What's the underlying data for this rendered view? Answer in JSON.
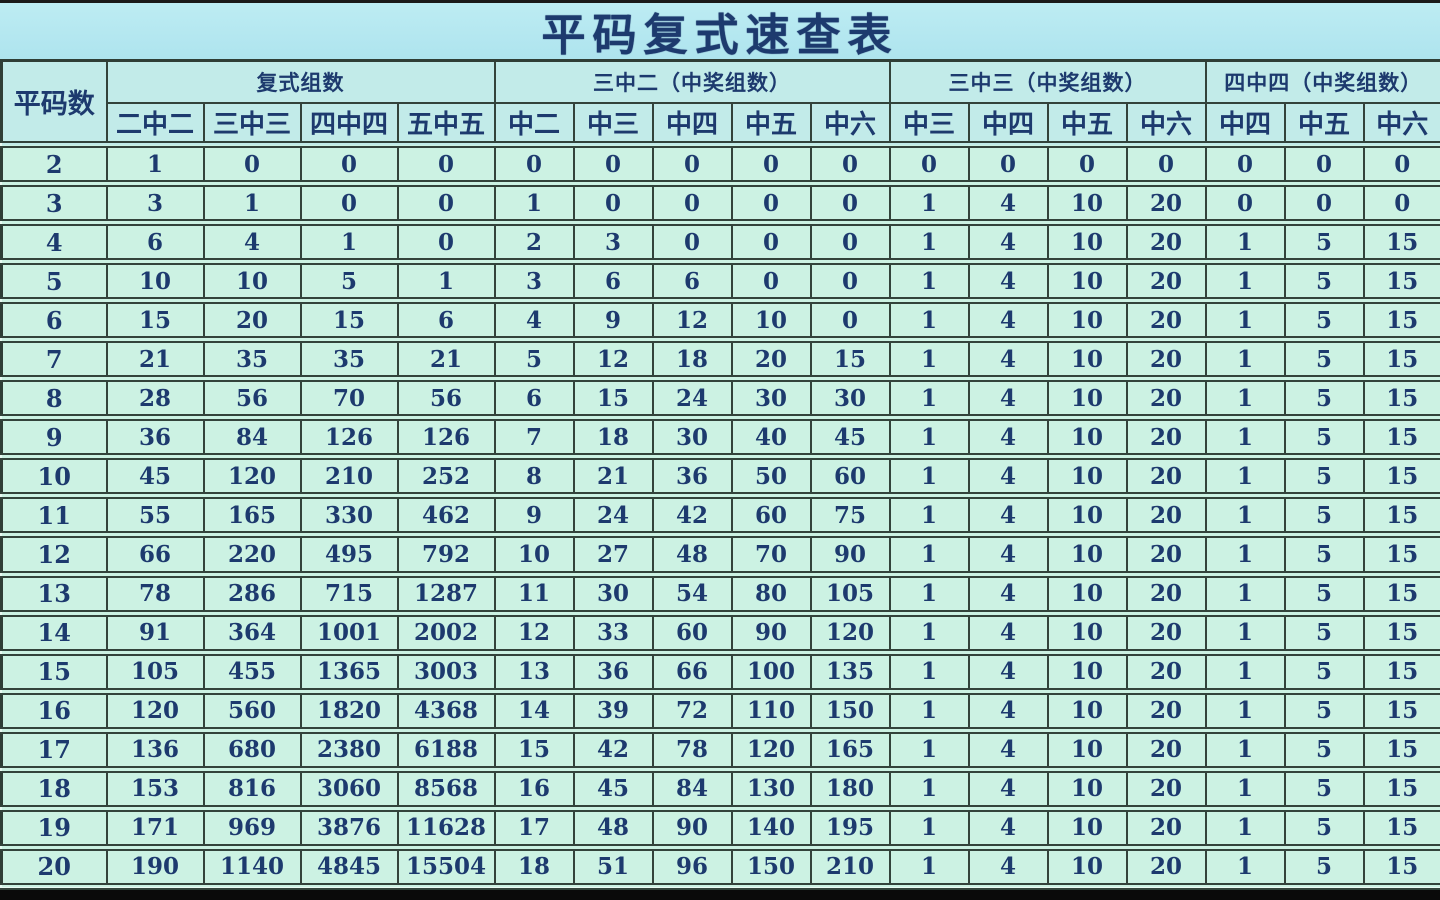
{
  "title": "平码复式速查表",
  "colors": {
    "title_band_bg": "#aee4ee",
    "header_cell_bg": "#c2ebe9",
    "data_cell_bg": "#ccf2e3",
    "row_gap_bg": "#e9fbf3",
    "text": "#1d3a6e",
    "border": "#33433b",
    "bottom_band": "#0a0a0a"
  },
  "chart_data": {
    "type": "table",
    "title": "平码复式速查表",
    "row_header_label": "平码数",
    "column_groups": [
      {
        "label": "复式组数",
        "cols": [
          "二中二",
          "三中三",
          "四中四",
          "五中五"
        ]
      },
      {
        "label": "三中二（中奖组数）",
        "cols": [
          "中二",
          "中三",
          "中四",
          "中五",
          "中六"
        ]
      },
      {
        "label": "三中三（中奖组数）",
        "cols": [
          "中三",
          "中四",
          "中五",
          "中六"
        ]
      },
      {
        "label": "四中四（中奖组数）",
        "cols": [
          "中四",
          "中五",
          "中六"
        ]
      }
    ],
    "rows": [
      {
        "n": 2,
        "values": [
          1,
          0,
          0,
          0,
          0,
          0,
          0,
          0,
          0,
          0,
          0,
          0,
          0,
          0,
          0,
          0
        ]
      },
      {
        "n": 3,
        "values": [
          3,
          1,
          0,
          0,
          1,
          0,
          0,
          0,
          0,
          1,
          4,
          10,
          20,
          0,
          0,
          0
        ]
      },
      {
        "n": 4,
        "values": [
          6,
          4,
          1,
          0,
          2,
          3,
          0,
          0,
          0,
          1,
          4,
          10,
          20,
          1,
          5,
          15
        ]
      },
      {
        "n": 5,
        "values": [
          10,
          10,
          5,
          1,
          3,
          6,
          6,
          0,
          0,
          1,
          4,
          10,
          20,
          1,
          5,
          15
        ]
      },
      {
        "n": 6,
        "values": [
          15,
          20,
          15,
          6,
          4,
          9,
          12,
          10,
          0,
          1,
          4,
          10,
          20,
          1,
          5,
          15
        ]
      },
      {
        "n": 7,
        "values": [
          21,
          35,
          35,
          21,
          5,
          12,
          18,
          20,
          15,
          1,
          4,
          10,
          20,
          1,
          5,
          15
        ]
      },
      {
        "n": 8,
        "values": [
          28,
          56,
          70,
          56,
          6,
          15,
          24,
          30,
          30,
          1,
          4,
          10,
          20,
          1,
          5,
          15
        ]
      },
      {
        "n": 9,
        "values": [
          36,
          84,
          126,
          126,
          7,
          18,
          30,
          40,
          45,
          1,
          4,
          10,
          20,
          1,
          5,
          15
        ]
      },
      {
        "n": 10,
        "values": [
          45,
          120,
          210,
          252,
          8,
          21,
          36,
          50,
          60,
          1,
          4,
          10,
          20,
          1,
          5,
          15
        ]
      },
      {
        "n": 11,
        "values": [
          55,
          165,
          330,
          462,
          9,
          24,
          42,
          60,
          75,
          1,
          4,
          10,
          20,
          1,
          5,
          15
        ]
      },
      {
        "n": 12,
        "values": [
          66,
          220,
          495,
          792,
          10,
          27,
          48,
          70,
          90,
          1,
          4,
          10,
          20,
          1,
          5,
          15
        ]
      },
      {
        "n": 13,
        "values": [
          78,
          286,
          715,
          1287,
          11,
          30,
          54,
          80,
          105,
          1,
          4,
          10,
          20,
          1,
          5,
          15
        ]
      },
      {
        "n": 14,
        "values": [
          91,
          364,
          1001,
          2002,
          12,
          33,
          60,
          90,
          120,
          1,
          4,
          10,
          20,
          1,
          5,
          15
        ]
      },
      {
        "n": 15,
        "values": [
          105,
          455,
          1365,
          3003,
          13,
          36,
          66,
          100,
          135,
          1,
          4,
          10,
          20,
          1,
          5,
          15
        ]
      },
      {
        "n": 16,
        "values": [
          120,
          560,
          1820,
          4368,
          14,
          39,
          72,
          110,
          150,
          1,
          4,
          10,
          20,
          1,
          5,
          15
        ]
      },
      {
        "n": 17,
        "values": [
          136,
          680,
          2380,
          6188,
          15,
          42,
          78,
          120,
          165,
          1,
          4,
          10,
          20,
          1,
          5,
          15
        ]
      },
      {
        "n": 18,
        "values": [
          153,
          816,
          3060,
          8568,
          16,
          45,
          84,
          130,
          180,
          1,
          4,
          10,
          20,
          1,
          5,
          15
        ]
      },
      {
        "n": 19,
        "values": [
          171,
          969,
          3876,
          11628,
          17,
          48,
          90,
          140,
          195,
          1,
          4,
          10,
          20,
          1,
          5,
          15
        ]
      },
      {
        "n": 20,
        "values": [
          190,
          1140,
          4845,
          15504,
          18,
          51,
          96,
          150,
          210,
          1,
          4,
          10,
          20,
          1,
          5,
          15
        ]
      }
    ]
  }
}
